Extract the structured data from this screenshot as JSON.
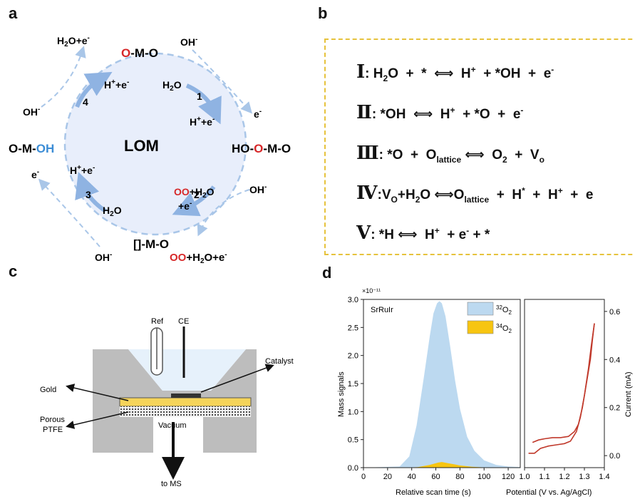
{
  "panels": {
    "a": "a",
    "b": "b",
    "c": "c",
    "d": "d"
  },
  "lom": {
    "center": "LOM",
    "top_species": {
      "o": "O",
      "rest": "-M-O"
    },
    "right_species": {
      "pre": "HO-",
      "o": "O",
      "post": "-M-O"
    },
    "left_species": {
      "pre": "O-M-",
      "oh": "OH"
    },
    "bottom_species": "[]-M-O",
    "steps": [
      "1",
      "2",
      "3",
      "4"
    ],
    "step1": {
      "in": "H2O",
      "out": "H++e-",
      "ext_in": "OH-",
      "ext_out": "e-"
    },
    "step2": {
      "in_o1": "O",
      "in_o2": "O",
      "in_rest": "+H2O",
      "in_e": "+e-",
      "ext_in": "OH-",
      "ext_out_o1": "O",
      "ext_out_o2": "O",
      "ext_out_rest": "+H2O+e-"
    },
    "step3": {
      "in": "H2O",
      "out": "H++e-",
      "ext_in": "OH-",
      "ext_out": "e-"
    },
    "step4": {
      "in": "H++e-",
      "ext_in": "OH-",
      "ext_out": "H2O+e-"
    }
  },
  "equations": [
    {
      "num": "Ⅰ",
      "text": ": H₂O + *  ⟺  H⁺ + *OH + e⁻"
    },
    {
      "num": "Ⅱ",
      "text": ": *OH  ⟺  H⁺ + *O + e⁻"
    },
    {
      "num": "Ⅲ",
      "text": ": *O + O_lattice ⟺ O₂ + V_o"
    },
    {
      "num": "Ⅳ",
      "text": ":V_O+H₂O ⟺O_lattice + H* + H⁺ + e"
    },
    {
      "num": "Ⅴ",
      "text": ": *H ⟺  H⁺ + e⁻ + *"
    }
  ],
  "cell": {
    "ref": "Ref",
    "ce": "CE",
    "catalyst": "Catalyst",
    "gold": "Gold",
    "porous1": "Porous",
    "porous2": "PTFE",
    "vacuum": "Vacuum",
    "to_ms": "to MS"
  },
  "colors": {
    "blue_circle": "#e8eefb",
    "dash_blue": "#a9c6e8",
    "red_o": "#d62728",
    "oh_blue": "#3c8dd6",
    "dashed_box": "#e6c23c",
    "gold": "#f5d45a",
    "o2_32": "#bcd9f0",
    "o2_34": "#f7c511",
    "current": "#c0392b"
  },
  "chart_data": [
    {
      "type": "area",
      "title": "",
      "label": "SrRuIr",
      "scale_label": "×10⁻¹¹",
      "xlabel": "Relative scan time (s)",
      "ylabel": "Mass signals",
      "xlim": [
        0,
        130
      ],
      "ylim": [
        0,
        3.0
      ],
      "xticks": [
        0,
        20,
        40,
        60,
        80,
        100,
        120
      ],
      "yticks": [
        0.0,
        0.5,
        1.0,
        1.5,
        2.0,
        2.5,
        3.0
      ],
      "legend": "top-right",
      "series": [
        {
          "name": "32O2",
          "color": "#bcd9f0",
          "x": [
            0,
            30,
            38,
            44,
            50,
            55,
            58,
            61,
            63,
            65,
            68,
            72,
            76,
            80,
            86,
            92,
            100,
            110,
            120,
            130
          ],
          "y": [
            0,
            0.02,
            0.2,
            0.75,
            1.6,
            2.35,
            2.75,
            2.93,
            2.97,
            2.93,
            2.7,
            2.15,
            1.55,
            1.05,
            0.55,
            0.3,
            0.13,
            0.05,
            0.02,
            0.01
          ]
        },
        {
          "name": "34O2",
          "color": "#f7c511",
          "x": [
            0,
            35,
            45,
            55,
            62,
            65,
            70,
            80,
            90,
            100,
            130
          ],
          "y": [
            0,
            0.0,
            0.01,
            0.05,
            0.09,
            0.1,
            0.08,
            0.04,
            0.015,
            0.005,
            0
          ]
        }
      ]
    },
    {
      "type": "line",
      "title": "",
      "xlabel": "Potential (V vs. Ag/AgCl)",
      "ylabel": "Current (mA)",
      "xlim": [
        1.0,
        1.4
      ],
      "ylim": [
        -0.05,
        0.65
      ],
      "xticks": [
        1.0,
        1.1,
        1.2,
        1.3,
        1.4
      ],
      "yticks": [
        0.0,
        0.2,
        0.4,
        0.6
      ],
      "yaxis_side": "right",
      "series": [
        {
          "name": "",
          "color": "#c0392b",
          "x": [
            1.02,
            1.05,
            1.08,
            1.12,
            1.16,
            1.2,
            1.23,
            1.26,
            1.28,
            1.3,
            1.32,
            1.335,
            1.35
          ],
          "y": [
            0.01,
            0.01,
            0.03,
            0.04,
            0.045,
            0.05,
            0.06,
            0.1,
            0.16,
            0.25,
            0.36,
            0.46,
            0.55
          ]
        },
        {
          "name": "",
          "color": "#c0392b",
          "x": [
            1.35,
            1.34,
            1.33,
            1.31,
            1.29,
            1.27,
            1.25,
            1.22,
            1.18,
            1.14,
            1.1,
            1.07,
            1.04
          ],
          "y": [
            0.55,
            0.48,
            0.4,
            0.3,
            0.2,
            0.13,
            0.1,
            0.08,
            0.075,
            0.075,
            0.07,
            0.065,
            0.055
          ]
        }
      ]
    }
  ]
}
